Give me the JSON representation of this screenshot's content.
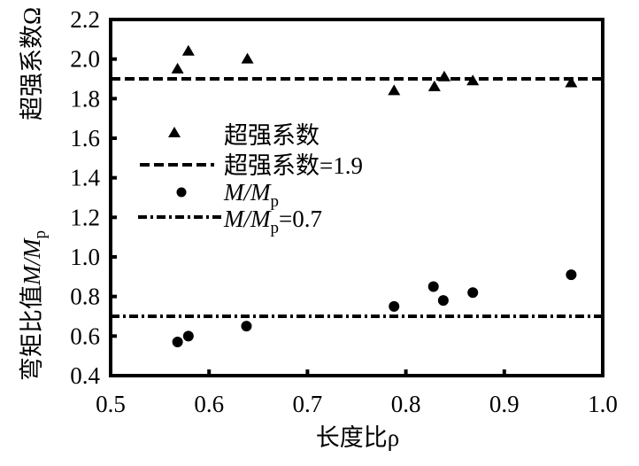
{
  "chart_data": {
    "type": "scatter",
    "title": "",
    "xlabel": "长度比ρ",
    "ylabel_top": "超强系数Ω",
    "ylabel_bottom_prefix": "弯矩比值",
    "ylabel_bottom_M": "M/M",
    "ylabel_bottom_sub": "p",
    "xlim": [
      0.5,
      1.0
    ],
    "ylim": [
      0.4,
      2.2
    ],
    "xticks": [
      "0.5",
      "0.6",
      "0.7",
      "0.8",
      "0.9",
      "1.0"
    ],
    "yticks": [
      "0.4",
      "0.6",
      "0.8",
      "1.0",
      "1.2",
      "1.4",
      "1.6",
      "1.8",
      "2.0",
      "2.2"
    ],
    "grid": false,
    "legend_position": "center-left",
    "series": [
      {
        "name": "超强系数",
        "marker": "triangle",
        "x": [
          0.568,
          0.579,
          0.639,
          0.788,
          0.829,
          0.839,
          0.868,
          0.968
        ],
        "y": [
          1.95,
          2.04,
          2.0,
          1.84,
          1.86,
          1.91,
          1.89,
          1.88
        ]
      },
      {
        "name": "M/Mp",
        "marker": "circle",
        "x": [
          0.568,
          0.579,
          0.638,
          0.788,
          0.828,
          0.838,
          0.868,
          0.968
        ],
        "y": [
          0.57,
          0.6,
          0.65,
          0.75,
          0.85,
          0.78,
          0.82,
          0.91
        ]
      }
    ],
    "reference_lines": [
      {
        "name": "超强系数=1.9",
        "y": 1.9,
        "style": "dashed"
      },
      {
        "name": "M/Mp=0.7",
        "y": 0.7,
        "style": "dashdot"
      }
    ],
    "legend": {
      "item1": "超强系数",
      "item2": "超强系数=1.9",
      "item3_M": "M/M",
      "item3_sub": "p",
      "item4_M": "M/M",
      "item4_sub": "p",
      "item4_suffix": "=0.7"
    }
  }
}
